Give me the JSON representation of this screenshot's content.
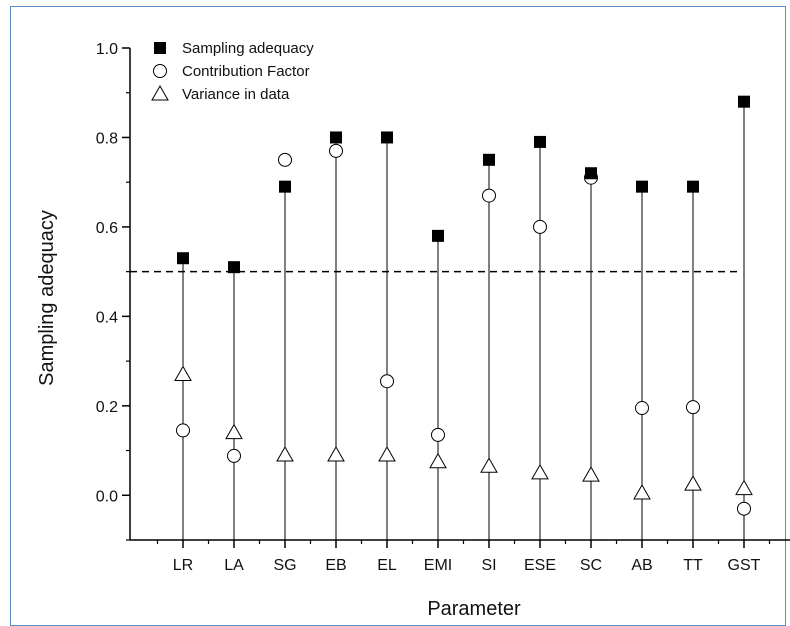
{
  "chart_data": {
    "type": "scatter",
    "xlabel": "Parameter",
    "ylabel": "Sampling adequacy",
    "ylim": [
      -0.1,
      1.0
    ],
    "yticks": [
      "0.0",
      "0.2",
      "0.4",
      "0.6",
      "0.8",
      "1.0"
    ],
    "categories": [
      "LR",
      "LA",
      "SG",
      "EB",
      "EL",
      "EMI",
      "SI",
      "ESE",
      "SC",
      "AB",
      "TT",
      "GST"
    ],
    "series": [
      {
        "name": "Sampling adequacy",
        "marker": "filled-square",
        "values": [
          0.53,
          0.51,
          0.69,
          0.8,
          0.8,
          0.58,
          0.75,
          0.79,
          0.72,
          0.69,
          0.69,
          0.88
        ]
      },
      {
        "name": "Contribution Factor",
        "marker": "open-circle",
        "values": [
          0.145,
          0.088,
          0.75,
          0.77,
          0.255,
          0.135,
          0.67,
          0.6,
          0.71,
          0.195,
          0.197,
          -0.03
        ]
      },
      {
        "name": "Variance in data",
        "marker": "open-triangle",
        "values": [
          0.27,
          0.14,
          0.09,
          0.09,
          0.09,
          0.075,
          0.065,
          0.05,
          0.045,
          0.005,
          0.025,
          0.015
        ]
      }
    ],
    "reference_line": {
      "y": 0.5,
      "style": "dashed"
    },
    "stems": "vertical line from x-axis to sampling adequacy marker",
    "legend_position": "top-left",
    "grid": false,
    "colors": {
      "markers": "#000000",
      "axes": "#000000",
      "frame": "#5b8fc7"
    }
  }
}
